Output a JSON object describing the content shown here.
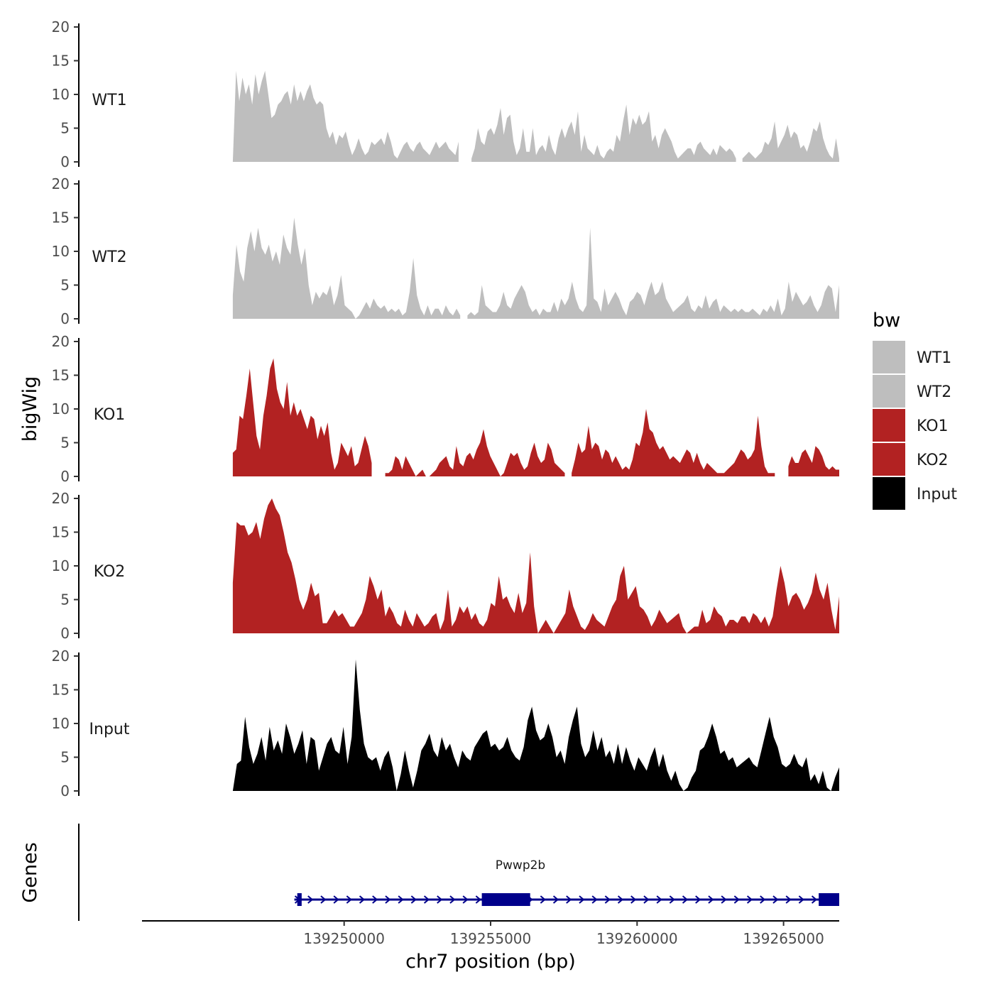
{
  "chart_data": {
    "type": "area",
    "ylabel": "bigWig",
    "xlabel": "chr7 position (bp)",
    "ylim": [
      0,
      20
    ],
    "yticks": [
      "0",
      "5",
      "10",
      "15",
      "20"
    ],
    "xlim": [
      139243100,
      139266900
    ],
    "xticks": [
      {
        "value": 139250000,
        "label": "139250000"
      },
      {
        "value": 139255000,
        "label": "139255000"
      },
      {
        "value": 139260000,
        "label": "139260000"
      },
      {
        "value": 139265000,
        "label": "139265000"
      }
    ],
    "data_xrange": [
      139246200,
      139266900
    ],
    "legend": {
      "title": "bw",
      "items": [
        {
          "label": "WT1",
          "color": "#bebebe"
        },
        {
          "label": "WT2",
          "color": "#bebebe"
        },
        {
          "label": "KO1",
          "color": "#b22222"
        },
        {
          "label": "KO2",
          "color": "#b22222"
        },
        {
          "label": "Input",
          "color": "#000000"
        }
      ]
    },
    "series": [
      {
        "name": "WT1",
        "color": "#bebebe",
        "values": [
          0,
          13.5,
          9,
          12.5,
          10,
          11.5,
          8.5,
          13,
          10,
          12,
          13.5,
          10,
          6.5,
          7,
          8.5,
          9,
          10,
          10.5,
          8.5,
          11.5,
          9,
          10.5,
          9,
          10.5,
          11.5,
          9.5,
          8.5,
          9,
          8.5,
          5,
          3.5,
          4.5,
          2.5,
          4,
          3.5,
          4.5,
          2.5,
          1,
          2,
          3.5,
          2,
          1,
          1.5,
          3,
          2.5,
          3,
          3.5,
          2.5,
          4.5,
          3,
          1,
          0.5,
          1.5,
          2.5,
          3,
          2,
          1.5,
          2.5,
          3,
          2,
          1.5,
          1,
          2,
          3,
          2,
          2.5,
          3,
          2,
          1.5,
          1,
          3,
          null,
          null,
          null,
          0.5,
          2,
          5,
          3,
          2.5,
          4.5,
          5,
          4,
          5.5,
          8,
          4,
          6.5,
          7,
          3,
          1,
          2,
          5,
          1.5,
          1.5,
          5,
          1,
          2,
          2.5,
          1.5,
          4,
          2,
          1,
          3.5,
          5,
          3.5,
          5,
          6,
          4,
          7.5,
          1.5,
          4,
          2,
          1.5,
          1,
          2.5,
          1,
          0.5,
          1.5,
          2,
          1.5,
          4,
          3,
          6,
          8.5,
          4,
          6.5,
          5.5,
          7,
          5.5,
          6,
          7.5,
          3,
          4,
          2,
          4,
          5,
          4,
          3,
          1.5,
          0.5,
          1,
          1.5,
          2,
          2,
          1,
          2.5,
          3,
          2,
          1.5,
          1,
          2,
          1,
          2.5,
          2,
          1.5,
          2,
          1.5,
          0.5,
          null,
          0.5,
          1,
          1.5,
          1,
          0.5,
          1,
          1.5,
          3,
          2.5,
          3.5,
          6,
          2,
          3,
          4,
          5.5,
          3.5,
          4.5,
          4,
          2,
          2.5,
          1.5,
          3,
          5,
          4.5,
          6,
          3.5,
          2,
          1,
          0.5,
          3.5,
          0.5
        ]
      },
      {
        "name": "WT2",
        "color": "#bebebe",
        "values": [
          3.5,
          11,
          7,
          5.5,
          10.5,
          13,
          10,
          13.5,
          10.5,
          9.5,
          11,
          8.5,
          10,
          8,
          12.5,
          10.5,
          9.5,
          15,
          11,
          8,
          10.5,
          5,
          2,
          4,
          3,
          4,
          3.5,
          5,
          2,
          3.5,
          6.5,
          2,
          1.5,
          1,
          0,
          0.5,
          1.5,
          2.5,
          1.5,
          3,
          2,
          1.5,
          2,
          1,
          1.5,
          1,
          1.5,
          0.5,
          1,
          4,
          9,
          3.5,
          1.5,
          0.5,
          2,
          0.5,
          1.5,
          1.5,
          0.5,
          2,
          1,
          0.5,
          1.5,
          0.5,
          null,
          0.5,
          1,
          0.5,
          1,
          5,
          2,
          1.5,
          1,
          1,
          2,
          4,
          2,
          1.5,
          3,
          4,
          5,
          4,
          2,
          1,
          1.5,
          0.5,
          1.5,
          1,
          1,
          2.5,
          1,
          3,
          2,
          3,
          5.5,
          3,
          1.5,
          1,
          2,
          13.5,
          3,
          2.5,
          1,
          4.5,
          2,
          3,
          4,
          3,
          1.5,
          0.5,
          2.5,
          3,
          4,
          3.5,
          2,
          4,
          5.5,
          3.5,
          4,
          5.5,
          3,
          2,
          1,
          1.5,
          2,
          2.5,
          3.5,
          1.5,
          1,
          2,
          1.5,
          3.5,
          1.5,
          2.5,
          3,
          1,
          2,
          1.5,
          1,
          1.5,
          1,
          1.5,
          1,
          1,
          1.5,
          1,
          0.5,
          1.5,
          1,
          2,
          1,
          3,
          0.5,
          1.5,
          5.5,
          2.5,
          4,
          3,
          2,
          2.5,
          3.5,
          2,
          1,
          2,
          4,
          5,
          4.5,
          1,
          5
        ]
      },
      {
        "name": "KO1",
        "color": "#b22222",
        "values": [
          3.5,
          4,
          9,
          8.5,
          12,
          16,
          11,
          6,
          4,
          9,
          12,
          16,
          17.5,
          13,
          11,
          10,
          14,
          9,
          11,
          9,
          10,
          8.5,
          7,
          9,
          8.5,
          5.5,
          7.5,
          6,
          8,
          3.5,
          1,
          2,
          5,
          4,
          3,
          4.5,
          1.5,
          2,
          4,
          6,
          4.5,
          2,
          null,
          null,
          null,
          0.5,
          0.5,
          1,
          3,
          2.5,
          1,
          3,
          2,
          1,
          0,
          0.5,
          1,
          0,
          0,
          0.5,
          1,
          2,
          2.5,
          3,
          1.5,
          1,
          4.5,
          2,
          1.5,
          3,
          3.5,
          2.5,
          4,
          5,
          7,
          4.5,
          3,
          2,
          1,
          0,
          0.5,
          2,
          3.5,
          3,
          3.5,
          2,
          1,
          1.5,
          3.5,
          5,
          3,
          2,
          2.5,
          5,
          4,
          2,
          1.5,
          1,
          0.5,
          null,
          0.5,
          2.5,
          5,
          3.5,
          4,
          7.5,
          4,
          5,
          4.5,
          2.5,
          4,
          3.5,
          2,
          3,
          2,
          1,
          1.5,
          1,
          2.5,
          5,
          4.5,
          6.5,
          10,
          7,
          6.5,
          5,
          4,
          4.5,
          3.5,
          2.5,
          3,
          2.5,
          2,
          3,
          4,
          3.5,
          2,
          3.5,
          2,
          1,
          2,
          1.5,
          1,
          0.5,
          0.5,
          0.5,
          1,
          1.5,
          2,
          3,
          4,
          3.5,
          2.5,
          3,
          4,
          9,
          4.5,
          1.5,
          0.5,
          0.5,
          0.5,
          null,
          null,
          null,
          1.5,
          3,
          2,
          2,
          3.5,
          4,
          3,
          2,
          4.5,
          4,
          3,
          1.5,
          1,
          1.5,
          1,
          1
        ]
      },
      {
        "name": "KO2",
        "color": "#b22222",
        "values": [
          7.5,
          16.5,
          16,
          16,
          14.5,
          15,
          16.5,
          14,
          17,
          19,
          20,
          18.5,
          17.5,
          15,
          12,
          10.5,
          8,
          5,
          3.5,
          5,
          7.5,
          5.5,
          6,
          1.5,
          1.5,
          2.5,
          3.5,
          2.5,
          3,
          2,
          1,
          1,
          2,
          3,
          5,
          8.5,
          7,
          5,
          6.5,
          2.5,
          4,
          3,
          1.5,
          1,
          3.5,
          2,
          1,
          3,
          2,
          1,
          1.5,
          2.5,
          3,
          0.5,
          2,
          6.5,
          1,
          2,
          4,
          3,
          4,
          2,
          3,
          1.5,
          1,
          2,
          4.5,
          4,
          8.5,
          5,
          5.5,
          4,
          3,
          6,
          3,
          4.5,
          12,
          4,
          0,
          1,
          2,
          1,
          0,
          1,
          2,
          3,
          6.5,
          4,
          2.5,
          1,
          0.5,
          1.5,
          3,
          2,
          1.5,
          1,
          2.5,
          4,
          5,
          8.5,
          10,
          5,
          6,
          7,
          4,
          3.5,
          2.5,
          1,
          2,
          3.5,
          2.5,
          1.5,
          2,
          2.5,
          3,
          1,
          0,
          0.5,
          1,
          1,
          3.5,
          1.5,
          2,
          4,
          3,
          2.5,
          1,
          2,
          2,
          1.5,
          2.5,
          2.5,
          1.5,
          3,
          2.5,
          1.5,
          2.5,
          1,
          2.5,
          6.5,
          10,
          7.5,
          4,
          5.5,
          6,
          5,
          3.5,
          4.5,
          6,
          9,
          6.5,
          5,
          7.5,
          3.5,
          0.5,
          5.5
        ]
      },
      {
        "name": "Input",
        "color": "#000000",
        "values": [
          0,
          4,
          4.5,
          11,
          6.5,
          4,
          5.5,
          8,
          4.5,
          9.5,
          6,
          7.5,
          5.5,
          10,
          8,
          5.5,
          7,
          9,
          4,
          8,
          7.5,
          3,
          5,
          7,
          8,
          6,
          5.5,
          9.5,
          4,
          8,
          19.5,
          12,
          7,
          5,
          4.5,
          5,
          3,
          5,
          6,
          3.5,
          0,
          2.5,
          6,
          3,
          0.5,
          3,
          6,
          7,
          8.5,
          6,
          5,
          8,
          6,
          7,
          5,
          3.5,
          6,
          5,
          4.5,
          6.5,
          7.5,
          8.5,
          9,
          6.5,
          7,
          6,
          6.5,
          8,
          6,
          5,
          4.5,
          6.5,
          10.5,
          12.5,
          9,
          7.5,
          8,
          10,
          8,
          5,
          6,
          4,
          8,
          10.5,
          12.5,
          7,
          5,
          6,
          9,
          6,
          8,
          5,
          6,
          4,
          7,
          4,
          6.5,
          4.5,
          3,
          5,
          4,
          3,
          5,
          6.5,
          3.5,
          5.5,
          3,
          1.5,
          3,
          1,
          0,
          0.5,
          2,
          3,
          6,
          6.5,
          8,
          10,
          8,
          5.5,
          6,
          4.5,
          5,
          3.5,
          4,
          4.5,
          5,
          4,
          3.5,
          6,
          8.5,
          11,
          8,
          6.5,
          4,
          3.5,
          4,
          5.5,
          4,
          3.5,
          5,
          1.5,
          2.5,
          1,
          3,
          0.5,
          0,
          2,
          3.5
        ]
      }
    ],
    "gene_track": {
      "label": "Genes",
      "gene_name": "Pwwp2b",
      "strand": "+",
      "line_color": "#00008b",
      "start": 139248300,
      "end": 139266900,
      "exons": [
        {
          "start": 139248400,
          "end": 139248550
        },
        {
          "start": 139254700,
          "end": 139256350
        },
        {
          "start": 139266200,
          "end": 139266900
        }
      ]
    }
  }
}
